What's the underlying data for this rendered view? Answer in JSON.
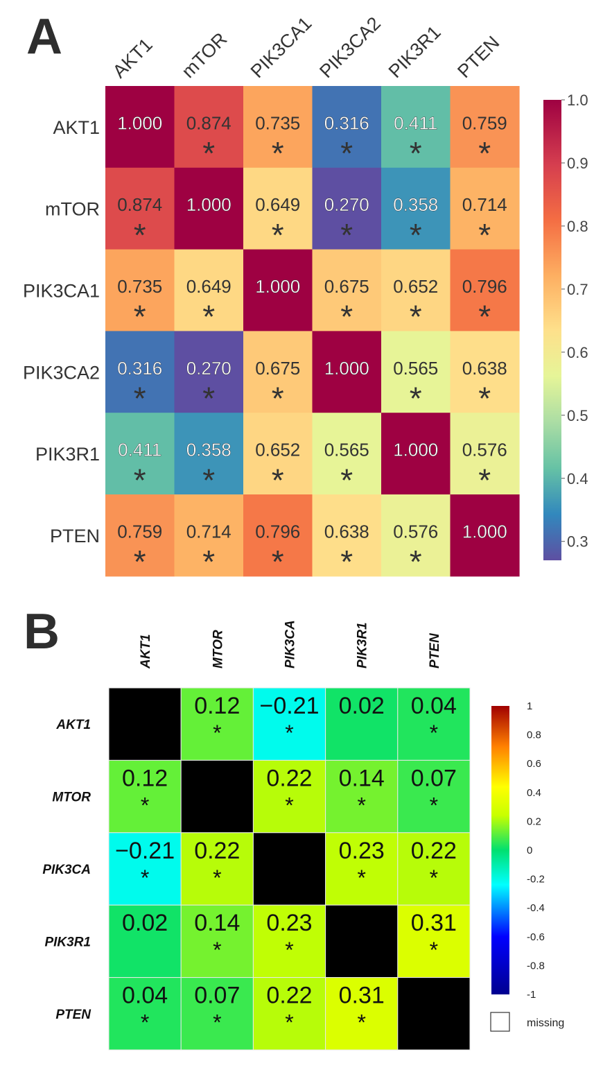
{
  "panels": {
    "a_label": "A",
    "b_label": "B"
  },
  "chart_data": [
    {
      "type": "heatmap",
      "title": "",
      "variables": [
        "AKT1",
        "mTOR",
        "PIK3CA1",
        "PIK3CA2",
        "PIK3R1",
        "PTEN"
      ],
      "values": [
        [
          1.0,
          0.874,
          0.735,
          0.316,
          0.411,
          0.759
        ],
        [
          0.874,
          1.0,
          0.649,
          0.27,
          0.358,
          0.714
        ],
        [
          0.735,
          0.649,
          1.0,
          0.675,
          0.652,
          0.796
        ],
        [
          0.316,
          0.27,
          0.675,
          1.0,
          0.565,
          0.638
        ],
        [
          0.411,
          0.358,
          0.652,
          0.565,
          1.0,
          0.576
        ],
        [
          0.759,
          0.714,
          0.796,
          0.638,
          0.576,
          1.0
        ]
      ],
      "labels": [
        [
          "1.000",
          "0.874",
          "0.735",
          "0.316",
          "0.411",
          "0.759"
        ],
        [
          "0.874",
          "1.000",
          "0.649",
          "0.270",
          "0.358",
          "0.714"
        ],
        [
          "0.735",
          "0.649",
          "1.000",
          "0.675",
          "0.652",
          "0.796"
        ],
        [
          "0.316",
          "0.270",
          "0.675",
          "1.000",
          "0.565",
          "0.638"
        ],
        [
          "0.411",
          "0.358",
          "0.652",
          "0.565",
          "1.000",
          "0.576"
        ],
        [
          "0.759",
          "0.714",
          "0.796",
          "0.638",
          "0.576",
          "1.000"
        ]
      ],
      "significance_marker": "*",
      "colormap": "Spectral_r",
      "colorbar": {
        "min": 0.27,
        "max": 1.0,
        "ticks": [
          "1.0",
          "0.9",
          "0.8",
          "0.7",
          "0.6",
          "0.5",
          "0.4",
          "0.3"
        ],
        "tick_values": [
          1.0,
          0.9,
          0.8,
          0.7,
          0.6,
          0.5,
          0.4,
          0.3
        ]
      }
    },
    {
      "type": "heatmap",
      "title": "",
      "variables": [
        "AKT1",
        "MTOR",
        "PIK3CA",
        "PIK3R1",
        "PTEN"
      ],
      "values": [
        [
          null,
          0.12,
          -0.21,
          0.02,
          0.04
        ],
        [
          0.12,
          null,
          0.22,
          0.14,
          0.07
        ],
        [
          -0.21,
          0.22,
          null,
          0.23,
          0.22
        ],
        [
          0.02,
          0.14,
          0.23,
          null,
          0.31
        ],
        [
          0.04,
          0.07,
          0.22,
          0.31,
          null
        ]
      ],
      "labels": [
        [
          "",
          "0.12",
          "−0.21",
          "0.02",
          "0.04"
        ],
        [
          "0.12",
          "",
          "0.22",
          "0.14",
          "0.07"
        ],
        [
          "−0.21",
          "0.22",
          "",
          "0.23",
          "0.22"
        ],
        [
          "0.02",
          "0.14",
          "0.23",
          "",
          "0.31"
        ],
        [
          "0.04",
          "0.07",
          "0.22",
          "0.31",
          ""
        ]
      ],
      "significant": [
        [
          false,
          true,
          true,
          false,
          true
        ],
        [
          true,
          false,
          true,
          true,
          true
        ],
        [
          true,
          true,
          false,
          true,
          true
        ],
        [
          false,
          true,
          true,
          false,
          true
        ],
        [
          true,
          true,
          true,
          true,
          false
        ]
      ],
      "significance_marker": "*",
      "colormap": "jet",
      "diagonal_color": "#000000",
      "colorbar": {
        "min": -1,
        "max": 1,
        "ticks": [
          "1",
          "0.8",
          "0.6",
          "0.4",
          "0.2",
          "0",
          "-0.2",
          "-0.4",
          "-0.6",
          "-0.8",
          "-1"
        ],
        "tick_values": [
          1,
          0.8,
          0.6,
          0.4,
          0.2,
          0,
          -0.2,
          -0.4,
          -0.6,
          -0.8,
          -1
        ]
      },
      "legend": {
        "missing_label": "missing"
      }
    }
  ]
}
